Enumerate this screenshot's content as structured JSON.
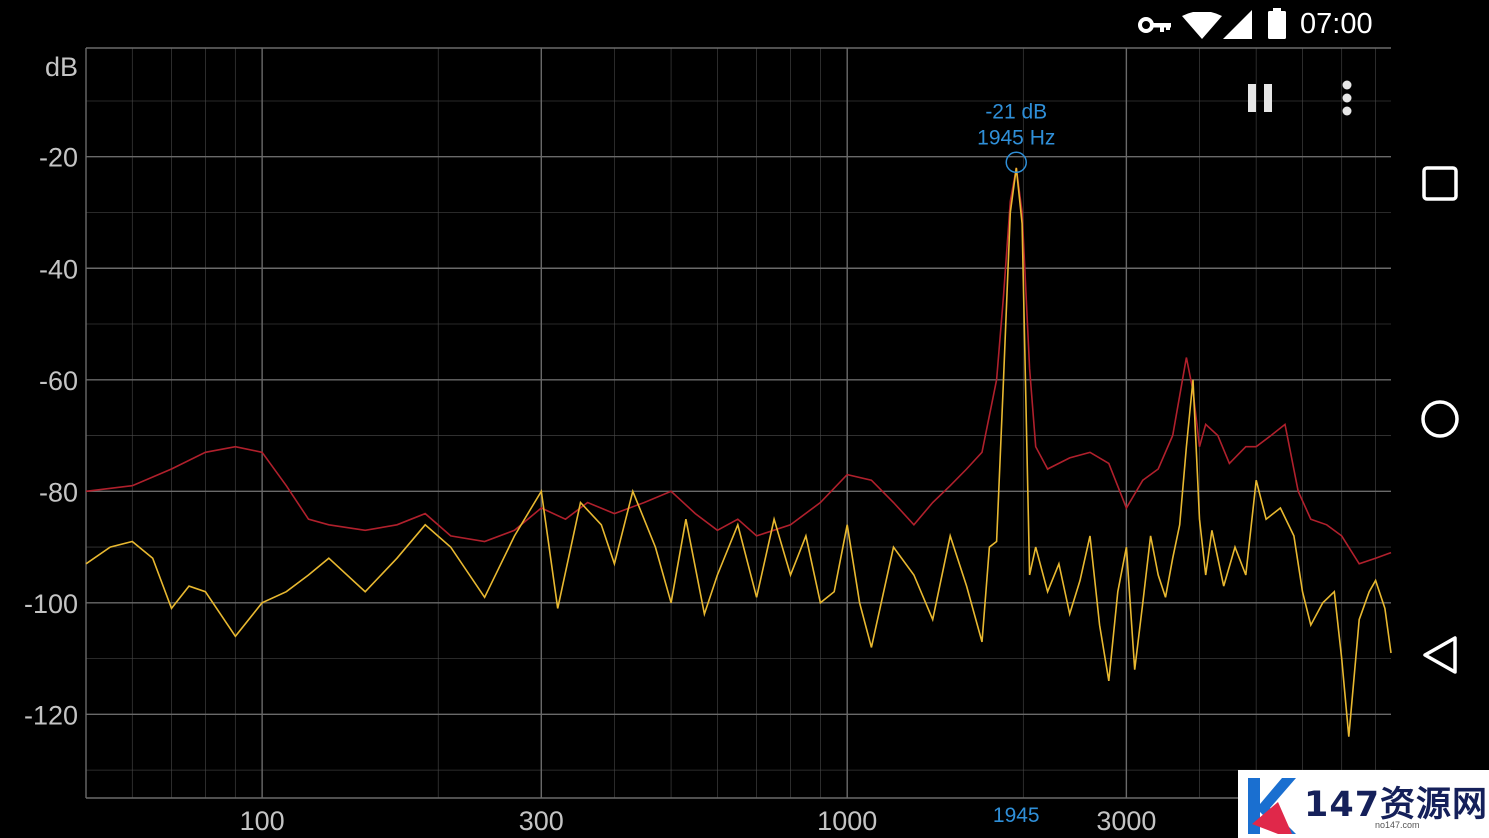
{
  "status_bar": {
    "time": "07:00",
    "icons": [
      "vpn-key-icon",
      "wifi-icon",
      "cell-signal-icon",
      "battery-icon"
    ]
  },
  "toolbar": {
    "pause_icon": "pause-icon",
    "menu_icon": "more-vert-icon"
  },
  "navigation_bar": {
    "buttons": [
      "recents-square-icon",
      "home-circle-icon",
      "back-triangle-icon"
    ]
  },
  "peak": {
    "db_label": "-21 dB",
    "hz_label": "1945 Hz",
    "x_marker": "1945",
    "freq_hz": 1945,
    "db": -21
  },
  "watermark": {
    "text": "147资源网",
    "url": "no147.com"
  },
  "colors": {
    "background": "#000000",
    "grid": "#4a4a4a",
    "live": "#e8b830",
    "peak_hold": "#b0202c",
    "marker": "#2f8fd8"
  },
  "chart_data": {
    "type": "line",
    "x_scale": "log",
    "xlim": [
      50,
      8500
    ],
    "ylim": [
      -135,
      -0.5
    ],
    "ylabel": "dB",
    "y_ticks": [
      -20,
      -40,
      -60,
      -80,
      -100,
      -120
    ],
    "y_tick_labels": [
      "-20",
      "-40",
      "-60",
      "-80",
      "-100",
      "-120"
    ],
    "x_ticks": [
      100,
      300,
      1000,
      3000
    ],
    "x_tick_labels": [
      "100",
      "300",
      "1000",
      "3000"
    ],
    "grid": true,
    "series": [
      {
        "color": "#b0202c",
        "x": [
          50,
          60,
          70,
          80,
          90,
          100,
          110,
          120,
          130,
          150,
          170,
          190,
          210,
          240,
          270,
          300,
          330,
          360,
          400,
          450,
          500,
          550,
          600,
          650,
          700,
          800,
          900,
          1000,
          1100,
          1200,
          1300,
          1400,
          1500,
          1600,
          1700,
          1800,
          1850,
          1900,
          1945,
          1990,
          2050,
          2100,
          2200,
          2400,
          2600,
          2800,
          3000,
          3200,
          3400,
          3600,
          3800,
          3900,
          4000,
          4100,
          4300,
          4500,
          4800,
          5000,
          5300,
          5600,
          5900,
          6200,
          6600,
          7000,
          7500,
          8000,
          8500
        ],
        "values": [
          -80,
          -79,
          -76,
          -73,
          -72,
          -73,
          -79,
          -85,
          -86,
          -87,
          -86,
          -84,
          -88,
          -89,
          -87,
          -83,
          -85,
          -82,
          -84,
          -82,
          -80,
          -84,
          -87,
          -85,
          -88,
          -86,
          -82,
          -77,
          -78,
          -82,
          -86,
          -82,
          -79,
          -76,
          -73,
          -60,
          -45,
          -28,
          -22,
          -30,
          -58,
          -72,
          -76,
          -74,
          -73,
          -75,
          -83,
          -78,
          -76,
          -70,
          -56,
          -62,
          -72,
          -68,
          -70,
          -75,
          -72,
          -72,
          -70,
          -68,
          -80,
          -85,
          -86,
          -88,
          -93,
          -92,
          -91
        ]
      },
      {
        "color": "#e8b830",
        "x": [
          50,
          55,
          60,
          65,
          70,
          75,
          80,
          90,
          100,
          110,
          120,
          130,
          150,
          170,
          190,
          210,
          240,
          270,
          300,
          320,
          350,
          380,
          400,
          430,
          470,
          500,
          530,
          570,
          600,
          650,
          700,
          750,
          800,
          850,
          900,
          950,
          1000,
          1050,
          1100,
          1200,
          1300,
          1400,
          1500,
          1600,
          1700,
          1750,
          1800,
          1850,
          1900,
          1945,
          1990,
          2050,
          2100,
          2200,
          2300,
          2400,
          2500,
          2600,
          2700,
          2800,
          2900,
          3000,
          3100,
          3200,
          3300,
          3400,
          3500,
          3600,
          3700,
          3800,
          3900,
          4000,
          4100,
          4200,
          4400,
          4600,
          4800,
          5000,
          5200,
          5500,
          5800,
          6000,
          6200,
          6500,
          6800,
          7000,
          7200,
          7500,
          7800,
          8000,
          8300,
          8500
        ],
        "values": [
          -93,
          -90,
          -89,
          -92,
          -101,
          -97,
          -98,
          -106,
          -100,
          -98,
          -95,
          -92,
          -98,
          -92,
          -86,
          -90,
          -99,
          -88,
          -80,
          -101,
          -82,
          -86,
          -93,
          -80,
          -90,
          -100,
          -85,
          -102,
          -95,
          -86,
          -99,
          -85,
          -95,
          -88,
          -100,
          -98,
          -86,
          -100,
          -108,
          -90,
          -95,
          -103,
          -88,
          -97,
          -107,
          -90,
          -89,
          -60,
          -30,
          -22,
          -32,
          -95,
          -90,
          -98,
          -93,
          -102,
          -96,
          -88,
          -104,
          -114,
          -98,
          -90,
          -112,
          -100,
          -88,
          -95,
          -99,
          -92,
          -86,
          -72,
          -60,
          -85,
          -95,
          -87,
          -97,
          -90,
          -95,
          -78,
          -85,
          -83,
          -88,
          -98,
          -104,
          -100,
          -98,
          -110,
          -124,
          -103,
          -98,
          -96,
          -101,
          -109
        ]
      }
    ]
  }
}
